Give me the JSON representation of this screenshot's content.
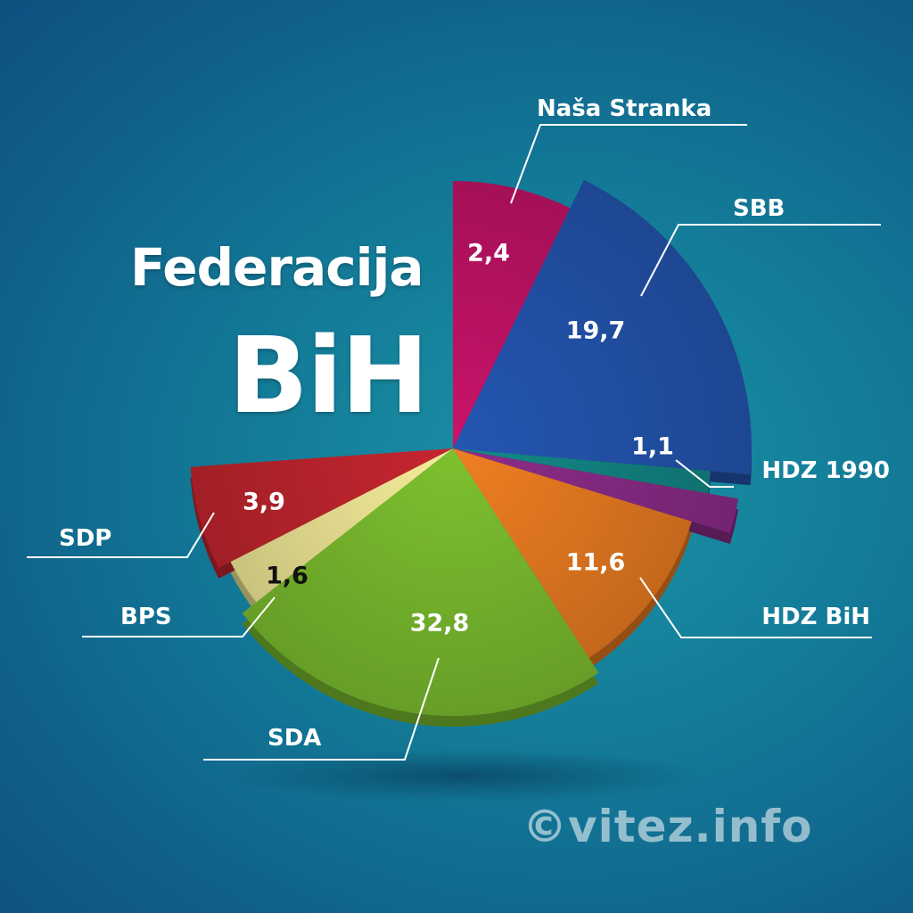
{
  "title": {
    "line1": "Federacija",
    "line2": "BiH"
  },
  "watermark": "©vitez.info",
  "chart_data": {
    "type": "pie",
    "title": "Federacija BiH",
    "value_format": "comma-decimal",
    "slices": [
      {
        "name": "Naša Stranka",
        "value": 2.4,
        "label": "2,4",
        "color": "#c9146a",
        "label_color": "#ffffff"
      },
      {
        "name": "SBB",
        "value": 19.7,
        "label": "19,7",
        "color": "#2456b2",
        "label_color": "#ffffff"
      },
      {
        "name": "HDZ 1990",
        "value": 1.1,
        "label": "1,1",
        "color": "#138a88",
        "label_color": "#ffffff"
      },
      {
        "name": "HDZ 1990 accent",
        "value": 0,
        "label": "",
        "color": "#8d2c8a",
        "label_color": "#ffffff"
      },
      {
        "name": "HDZ BiH",
        "value": 11.6,
        "label": "11,6",
        "color": "#f07f22",
        "label_color": "#ffffff"
      },
      {
        "name": "SDA",
        "value": 32.8,
        "label": "32,8",
        "color": "#7dc12f",
        "label_color": "#ffffff"
      },
      {
        "name": "BPS",
        "value": 1.6,
        "label": "1,6",
        "color": "#f6ee9a",
        "label_color": "#111111"
      },
      {
        "name": "SDP",
        "value": 3.9,
        "label": "3,9",
        "color": "#c62630",
        "label_color": "#ffffff"
      }
    ],
    "legend": "callout-lines"
  }
}
